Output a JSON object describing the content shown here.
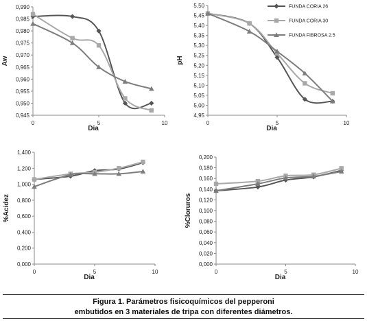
{
  "caption": {
    "line1": "Figura 1. Parámetros fisicoquímicos del pepperoni",
    "line2": "embutidos en 3 materiales de tripa con diferentes diámetros."
  },
  "series_colors": [
    "#555555",
    "#a8a8a8",
    "#7d7d7d"
  ],
  "chart_data": [
    {
      "type": "line",
      "id": "aw",
      "title": "",
      "xlabel": "Dia",
      "ylabel": "Aw",
      "xlim": [
        0,
        10
      ],
      "ylim": [
        0.945,
        0.99
      ],
      "xticks": [
        "0",
        "5",
        "10"
      ],
      "yticks": [
        "0,945",
        "0,950",
        "0,955",
        "0,960",
        "0,965",
        "0,970",
        "0,975",
        "0,980",
        "0,985",
        "0,990"
      ],
      "grid": false,
      "x": [
        0,
        3,
        5,
        7,
        9
      ],
      "series": [
        {
          "marker": "diamond",
          "values": [
            0.986,
            0.986,
            0.98,
            0.95,
            0.95
          ]
        },
        {
          "marker": "square",
          "values": [
            0.987,
            0.977,
            0.974,
            0.952,
            0.947
          ]
        },
        {
          "marker": "triangle",
          "values": [
            0.983,
            0.975,
            0.965,
            0.959,
            0.956
          ]
        }
      ]
    },
    {
      "type": "line",
      "id": "ph",
      "title": "",
      "xlabel": "Dia",
      "ylabel": "pH",
      "xlim": [
        0,
        10
      ],
      "ylim": [
        4.95,
        5.5
      ],
      "xticks": [
        "0",
        "5",
        "10"
      ],
      "yticks": [
        "4,95",
        "5,00",
        "5,05",
        "5,10",
        "5,15",
        "5,20",
        "5,25",
        "5,30",
        "5,35",
        "5,40",
        "5,45",
        "5,50"
      ],
      "grid": false,
      "legend_placement": "top-right",
      "x": [
        0,
        3,
        5,
        7,
        9
      ],
      "series": [
        {
          "name": "FUNDA CORIA 26",
          "marker": "diamond",
          "values": [
            5.46,
            5.41,
            5.24,
            5.03,
            5.02
          ]
        },
        {
          "name": "FUNDA CORIA 30",
          "marker": "square",
          "values": [
            5.46,
            5.41,
            5.26,
            5.11,
            5.06
          ]
        },
        {
          "name": "FUNDA FIBROSA 2.5",
          "marker": "triangle",
          "values": [
            5.46,
            5.37,
            5.27,
            5.16,
            5.02
          ]
        }
      ]
    },
    {
      "type": "line",
      "id": "acidez",
      "title": "",
      "xlabel": "Dia",
      "ylabel": "%Acidez",
      "xlim": [
        0,
        10
      ],
      "ylim": [
        0.0,
        1.4
      ],
      "xticks": [
        "0",
        "5",
        "10"
      ],
      "yticks": [
        "0,000",
        "0,200",
        "0,400",
        "0,600",
        "0,800",
        "1,000",
        "1,200",
        "1,400"
      ],
      "grid": false,
      "x": [
        0,
        3,
        5,
        7,
        9
      ],
      "series": [
        {
          "marker": "diamond",
          "values": [
            1.06,
            1.1,
            1.17,
            1.19,
            1.27
          ]
        },
        {
          "marker": "square",
          "values": [
            1.06,
            1.13,
            1.15,
            1.2,
            1.28
          ]
        },
        {
          "marker": "triangle",
          "values": [
            0.97,
            1.12,
            1.13,
            1.13,
            1.16
          ]
        }
      ]
    },
    {
      "type": "line",
      "id": "cloruros",
      "title": "",
      "xlabel": "Dia",
      "ylabel": "%Cloruros",
      "xlim": [
        0,
        10
      ],
      "ylim": [
        0.0,
        0.2
      ],
      "xticks": [
        "0",
        "5",
        "10"
      ],
      "yticks": [
        "0,000",
        "0,020",
        "0,040",
        "0,060",
        "0,080",
        "0,100",
        "0,120",
        "0,140",
        "0,160",
        "0,180",
        "0,200"
      ],
      "grid": false,
      "x": [
        0,
        3,
        5,
        7,
        9
      ],
      "series": [
        {
          "marker": "diamond",
          "values": [
            0.137,
            0.144,
            0.157,
            0.163,
            0.175
          ]
        },
        {
          "marker": "square",
          "values": [
            0.15,
            0.155,
            0.165,
            0.167,
            0.179
          ]
        },
        {
          "marker": "triangle",
          "values": [
            0.137,
            0.15,
            0.161,
            0.164,
            0.173
          ]
        }
      ]
    }
  ]
}
